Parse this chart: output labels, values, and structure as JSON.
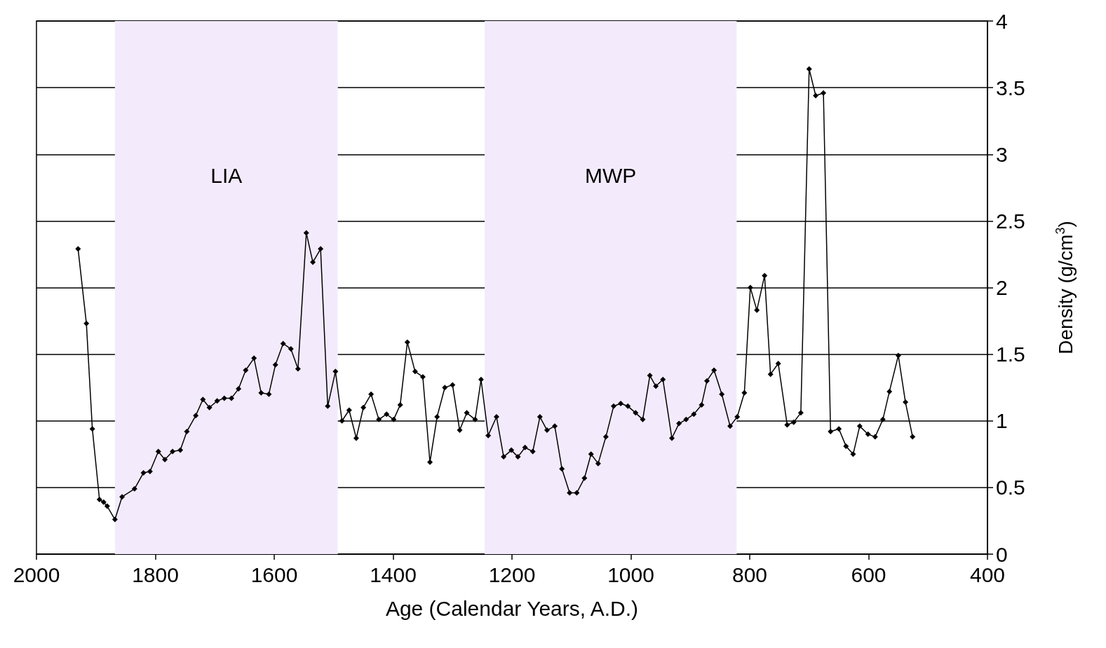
{
  "chart_data": {
    "type": "line",
    "xlabel": "Age (Calendar Years, A.D.)",
    "ylabel": "Density (g/cm$^{3}$)",
    "x": [
      1930,
      1916,
      1906,
      1894,
      1887,
      1881,
      1868,
      1856,
      1835,
      1820,
      1809,
      1795,
      1784,
      1771,
      1758,
      1747,
      1732,
      1720,
      1709,
      1696,
      1684,
      1672,
      1660,
      1648,
      1634,
      1622,
      1609,
      1598,
      1585,
      1572,
      1560,
      1546,
      1535,
      1522,
      1510,
      1497,
      1486,
      1474,
      1462,
      1450,
      1437,
      1424,
      1411,
      1399,
      1388,
      1376,
      1363,
      1350,
      1338,
      1326,
      1313,
      1300,
      1288,
      1276,
      1262,
      1252,
      1240,
      1226,
      1214,
      1201,
      1190,
      1178,
      1165,
      1153,
      1141,
      1128,
      1116,
      1103,
      1091,
      1078,
      1067,
      1055,
      1042,
      1029,
      1017,
      1005,
      992,
      980,
      968,
      958,
      946,
      931,
      919,
      907,
      894,
      881,
      872,
      860,
      847,
      833,
      821,
      809,
      799,
      788,
      775,
      765,
      752,
      737,
      726,
      714,
      700,
      689,
      676,
      664,
      650,
      638,
      626,
      615,
      601,
      589,
      576,
      565,
      550,
      538,
      526
    ],
    "values": [
      2.29,
      1.73,
      0.94,
      0.41,
      0.39,
      0.36,
      0.26,
      0.43,
      0.49,
      0.61,
      0.62,
      0.77,
      0.71,
      0.77,
      0.78,
      0.92,
      1.04,
      1.16,
      1.1,
      1.15,
      1.17,
      1.17,
      1.24,
      1.38,
      1.47,
      1.21,
      1.2,
      1.42,
      1.58,
      1.54,
      1.39,
      2.41,
      2.19,
      2.29,
      1.11,
      1.37,
      1.0,
      1.08,
      0.87,
      1.1,
      1.2,
      1.01,
      1.05,
      1.01,
      1.12,
      1.59,
      1.37,
      1.33,
      0.69,
      1.03,
      1.25,
      1.27,
      0.93,
      1.06,
      1.01,
      1.31,
      0.89,
      1.03,
      0.73,
      0.78,
      0.73,
      0.8,
      0.77,
      1.03,
      0.93,
      0.96,
      0.64,
      0.46,
      0.46,
      0.57,
      0.75,
      0.68,
      0.88,
      1.11,
      1.13,
      1.11,
      1.06,
      1.01,
      1.34,
      1.26,
      1.31,
      0.87,
      0.98,
      1.01,
      1.05,
      1.12,
      1.3,
      1.38,
      1.2,
      0.96,
      1.03,
      1.21,
      2.0,
      1.83,
      2.09,
      1.35,
      1.43,
      0.97,
      0.99,
      1.06,
      3.64,
      3.44,
      3.46,
      0.92,
      0.94,
      0.81,
      0.75,
      0.96,
      0.9,
      0.88,
      1.01,
      1.22,
      1.49,
      1.14,
      0.88
    ],
    "color": "#000000",
    "marker": "diamond",
    "line_style": "solid",
    "xlim": [
      2000,
      400
    ],
    "xticks": [
      2000,
      1800,
      1600,
      1400,
      1200,
      1000,
      800,
      600,
      400
    ],
    "ylim": [
      0,
      4
    ],
    "yticks": [
      0,
      0.5,
      1,
      1.5,
      2,
      2.5,
      3,
      3.5,
      4
    ],
    "grid": "y",
    "bands": [
      {
        "axis": "x",
        "from": 1868,
        "to": 1493,
        "label": "LIA",
        "color": "#f3ebfc"
      },
      {
        "axis": "x",
        "from": 1246,
        "to": 822,
        "label": "MWP",
        "color": "#f3ebfc"
      }
    ]
  }
}
